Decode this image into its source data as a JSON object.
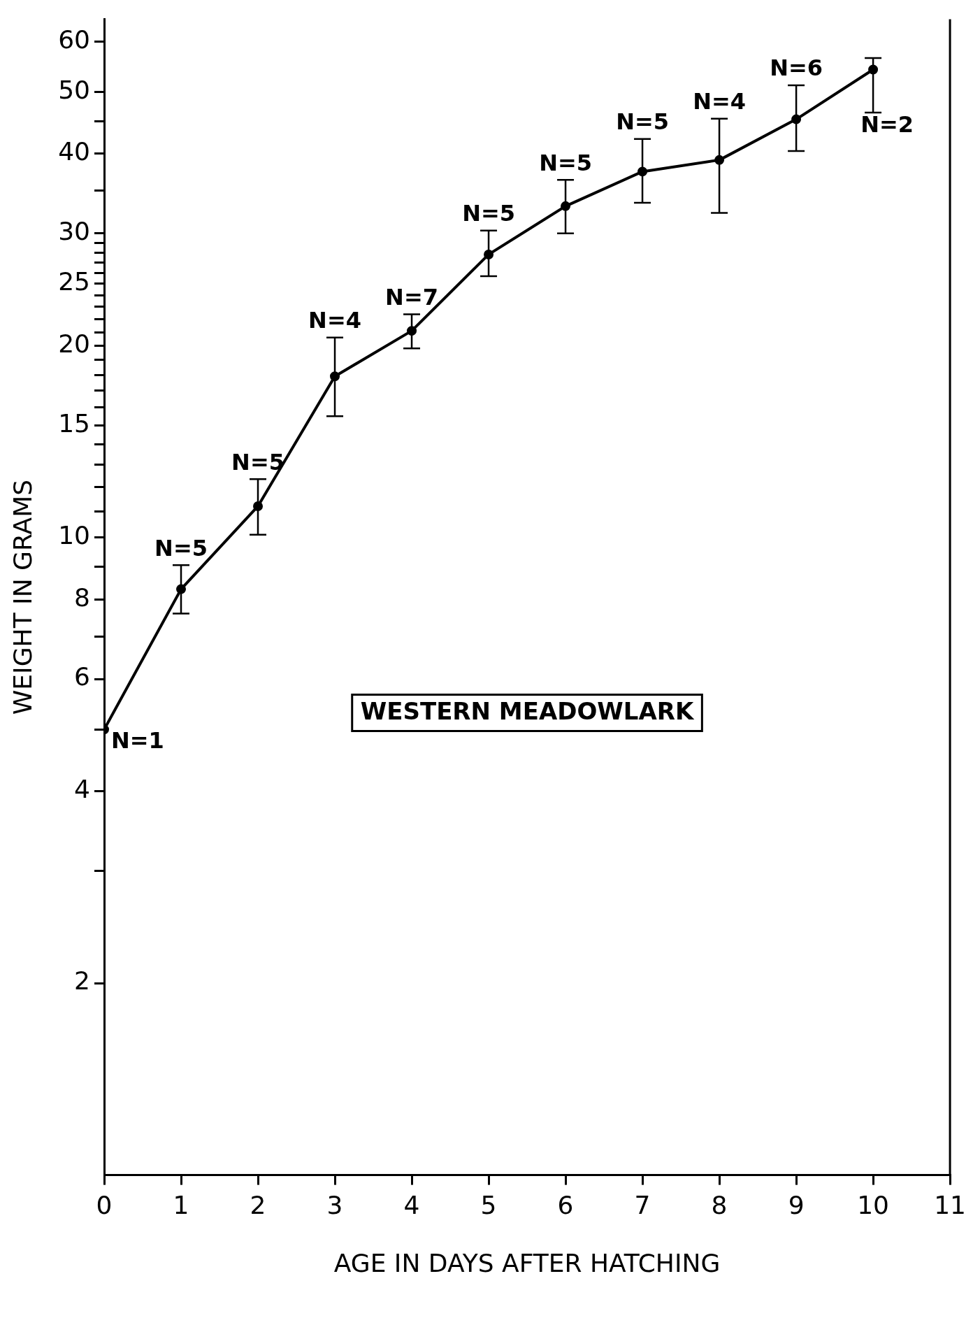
{
  "chart_data": {
    "type": "line",
    "xlabel": "AGE IN DAYS AFTER HATCHING",
    "ylabel": "WEIGHT IN GRAMS",
    "annotations": [
      "WESTERN MEADOWLARK",
      {
        "text": "N=1",
        "x": 0,
        "y": 5
      },
      {
        "text": "N=5",
        "x": 1,
        "y": 8.3
      },
      {
        "text": "N=5",
        "x": 2,
        "y": 11.2
      },
      {
        "text": "N=4",
        "x": 3,
        "y": 17.9
      },
      {
        "text": "N=7",
        "x": 4,
        "y": 21.1
      },
      {
        "text": "N=5",
        "x": 5,
        "y": 27.8
      },
      {
        "text": "N=5",
        "x": 6,
        "y": 33.1
      },
      {
        "text": "N=5",
        "x": 7,
        "y": 37.5
      },
      {
        "text": "N=4",
        "x": 8,
        "y": 39.1
      },
      {
        "text": "N=6",
        "x": 9,
        "y": 45.3
      },
      {
        "text": "N=2",
        "x": 10,
        "y": 54.2
      }
    ],
    "x": [
      0,
      1,
      2,
      3,
      4,
      5,
      6,
      7,
      8,
      9,
      10
    ],
    "values": [
      5,
      8.3,
      11.2,
      17.9,
      21.1,
      27.8,
      33.1,
      37.5,
      39.1,
      45.3,
      54.2
    ],
    "errors": [
      null,
      [
        7.6,
        9.05
      ],
      [
        10.1,
        12.35
      ],
      [
        15.5,
        20.6
      ],
      [
        19.8,
        22.4
      ],
      [
        25.7,
        30.3
      ],
      [
        30.0,
        36.4
      ],
      [
        33.5,
        42.2
      ],
      [
        32.3,
        45.4
      ],
      [
        40.4,
        51.2
      ],
      [
        46.4,
        56.5
      ]
    ],
    "color": "#000000",
    "marker": "circle",
    "line_style": "solid",
    "log": "y",
    "grid": false,
    "legend": false,
    "xlim": [
      0,
      11
    ],
    "xticks": [
      0,
      1,
      2,
      3,
      4,
      5,
      6,
      7,
      8,
      9,
      10,
      11
    ],
    "ylim": [
      1,
      65
    ],
    "yticks": [
      2,
      {
        "value": 3,
        "label": null
      },
      4,
      {
        "value": 5,
        "label": null
      },
      6,
      {
        "value": 7,
        "label": null
      },
      8,
      {
        "value": 9,
        "label": null
      },
      10,
      {
        "value": 11,
        "label": null
      },
      {
        "value": 12,
        "label": null
      },
      {
        "value": 13,
        "label": null
      },
      {
        "value": 14,
        "label": null
      },
      15,
      {
        "value": 16,
        "label": null
      },
      {
        "value": 17,
        "label": null
      },
      {
        "value": 18,
        "label": null
      },
      {
        "value": 19,
        "label": null
      },
      20,
      {
        "value": 21,
        "label": null
      },
      {
        "value": 22,
        "label": null
      },
      {
        "value": 23,
        "label": null
      },
      {
        "value": 24,
        "label": null
      },
      25,
      {
        "value": 26,
        "label": null
      },
      {
        "value": 27,
        "label": null
      },
      {
        "value": 28,
        "label": null
      },
      {
        "value": 29,
        "label": null
      },
      30,
      {
        "value": 35,
        "label": null
      },
      40,
      {
        "value": 45,
        "label": null
      },
      50,
      60
    ]
  }
}
